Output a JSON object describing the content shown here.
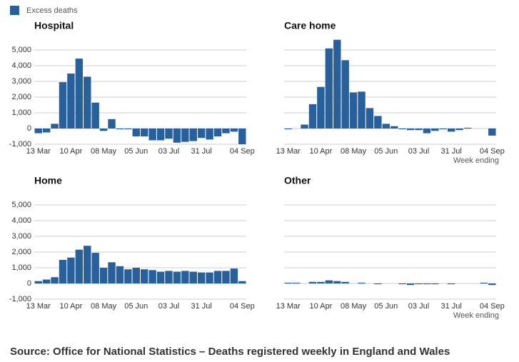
{
  "legend": {
    "label": "Excess deaths",
    "color": "#27609a"
  },
  "source": "Source: Office for National Statistics – Deaths registered weekly in England and Wales",
  "chart_data": [
    {
      "type": "bar",
      "title": "Hospital",
      "color": "#27609a",
      "show_ytick_labels": true,
      "categories": [
        "13 Mar",
        null,
        null,
        null,
        "10 Apr",
        null,
        null,
        null,
        "08 May",
        null,
        null,
        null,
        "05 Jun",
        null,
        null,
        null,
        "03 Jul",
        null,
        null,
        null,
        "31 Jul",
        null,
        null,
        null,
        null,
        "04 Sep"
      ],
      "values": [
        -300,
        -250,
        300,
        2950,
        3500,
        4450,
        3300,
        1650,
        -150,
        600,
        -50,
        -50,
        -500,
        -500,
        -750,
        -750,
        -650,
        -900,
        -850,
        -800,
        -600,
        -700,
        -500,
        -300,
        -200,
        -1000
      ],
      "ylim": [
        -1000,
        6000
      ],
      "yticks": [
        {
          "value": -1000,
          "label": "-1,000"
        },
        0,
        {
          "value": 1000,
          "label": "1,000"
        },
        {
          "value": 2000,
          "label": "2,000"
        },
        {
          "value": 3000,
          "label": "3,000"
        },
        {
          "value": 4000,
          "label": "4,000"
        },
        {
          "value": 5000,
          "label": "5,000"
        }
      ],
      "grid": true
    },
    {
      "type": "bar",
      "title": "Care home",
      "color": "#27609a",
      "show_ytick_labels": false,
      "xlabel": "Week ending",
      "categories": [
        "13 Mar",
        null,
        null,
        null,
        "10 Apr",
        null,
        null,
        null,
        "08 May",
        null,
        null,
        null,
        "05 Jun",
        null,
        null,
        null,
        "03 Jul",
        null,
        null,
        null,
        "31 Jul",
        null,
        null,
        null,
        null,
        "04 Sep"
      ],
      "values": [
        -50,
        0,
        250,
        1550,
        2650,
        5100,
        5650,
        4350,
        2300,
        2350,
        1300,
        800,
        300,
        150,
        -50,
        -100,
        -100,
        -300,
        -150,
        -50,
        -200,
        -100,
        50,
        0,
        0,
        -450
      ],
      "ylim": [
        -1000,
        6000
      ],
      "yticks": [
        -1000,
        0,
        1000,
        2000,
        3000,
        4000,
        5000
      ],
      "grid": true
    },
    {
      "type": "bar",
      "title": "Home",
      "color": "#27609a",
      "show_ytick_labels": true,
      "categories": [
        "13 Mar",
        null,
        null,
        null,
        "10 Apr",
        null,
        null,
        null,
        "08 May",
        null,
        null,
        null,
        "05 Jun",
        null,
        null,
        null,
        "03 Jul",
        null,
        null,
        null,
        "31 Jul",
        null,
        null,
        null,
        null,
        "04 Sep"
      ],
      "values": [
        150,
        250,
        400,
        1500,
        1650,
        2150,
        2400,
        1950,
        1000,
        1350,
        1100,
        900,
        1000,
        900,
        850,
        750,
        800,
        750,
        800,
        750,
        700,
        700,
        800,
        800,
        950,
        150
      ],
      "ylim": [
        -1000,
        6000
      ],
      "yticks": [
        {
          "value": -1000,
          "label": "-1,000"
        },
        0,
        {
          "value": 1000,
          "label": "1,000"
        },
        {
          "value": 2000,
          "label": "2,000"
        },
        {
          "value": 3000,
          "label": "3,000"
        },
        {
          "value": 4000,
          "label": "4,000"
        },
        {
          "value": 5000,
          "label": "5,000"
        }
      ],
      "grid": true
    },
    {
      "type": "bar",
      "title": "Other",
      "color": "#27609a",
      "show_ytick_labels": false,
      "xlabel": "Week ending",
      "categories": [
        "13 Mar",
        null,
        null,
        null,
        "10 Apr",
        null,
        null,
        null,
        "08 May",
        null,
        null,
        null,
        "05 Jun",
        null,
        null,
        null,
        "03 Jul",
        null,
        null,
        null,
        "31 Jul",
        null,
        null,
        null,
        null,
        "04 Sep"
      ],
      "values": [
        50,
        50,
        0,
        100,
        100,
        200,
        150,
        100,
        0,
        50,
        0,
        -50,
        0,
        0,
        -50,
        -100,
        -50,
        -50,
        -50,
        0,
        -50,
        0,
        0,
        0,
        50,
        -100
      ],
      "ylim": [
        -1000,
        6000
      ],
      "yticks": [
        -1000,
        0,
        1000,
        2000,
        3000,
        4000,
        5000
      ],
      "grid": true
    }
  ]
}
